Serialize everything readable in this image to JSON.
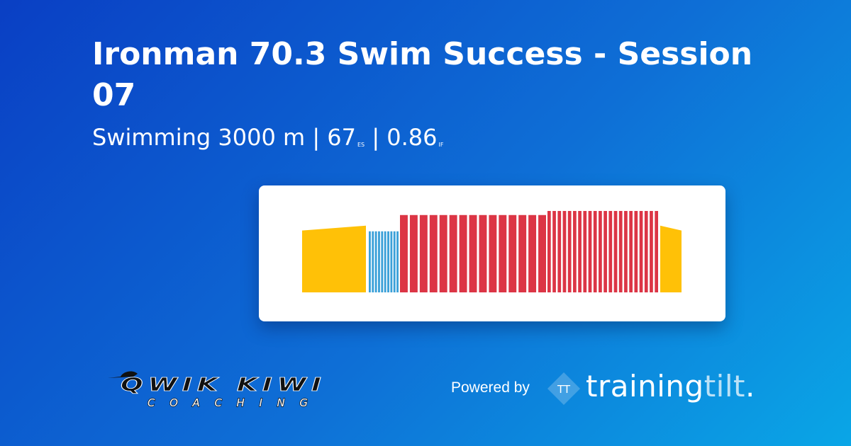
{
  "workout": {
    "title": "Ironman 70.3 Swim Success - Session 07",
    "sport": "Swimming",
    "distance": "3000 m",
    "separator": "|",
    "stress_score": "67",
    "stress_unit": "ES",
    "intensity_factor": "0.86",
    "intensity_unit": "IF"
  },
  "chart_data": {
    "type": "bar",
    "title": "",
    "xlabel": "",
    "ylabel": "",
    "ylim": [
      0,
      1
    ],
    "colors": {
      "warmup": "#ffc107",
      "easy": "#3aa0d8",
      "hard": "#dc3545",
      "cooldown": "#ffc107"
    },
    "steps": [
      {
        "kind": "ramp",
        "zone": "warmup",
        "count": 1,
        "start": 0.76,
        "end": 0.82
      },
      {
        "kind": "repeat",
        "zone": "easy",
        "count": 10,
        "value": 0.75
      },
      {
        "kind": "repeat",
        "zone": "hard",
        "count": 15,
        "value": 0.95
      },
      {
        "kind": "repeat",
        "zone": "hard",
        "count": 22,
        "value": 1.0
      },
      {
        "kind": "ramp",
        "zone": "cooldown",
        "count": 1,
        "start": 0.82,
        "end": 0.76
      }
    ]
  },
  "footer": {
    "client_logo_text": "QWIK KIWI",
    "client_logo_subtext": "COACHING",
    "powered_by_label": "Powered by",
    "brand_mark": "TT",
    "brand_name_main": "training",
    "brand_name_accent": "tilt",
    "brand_name_dot": "."
  }
}
